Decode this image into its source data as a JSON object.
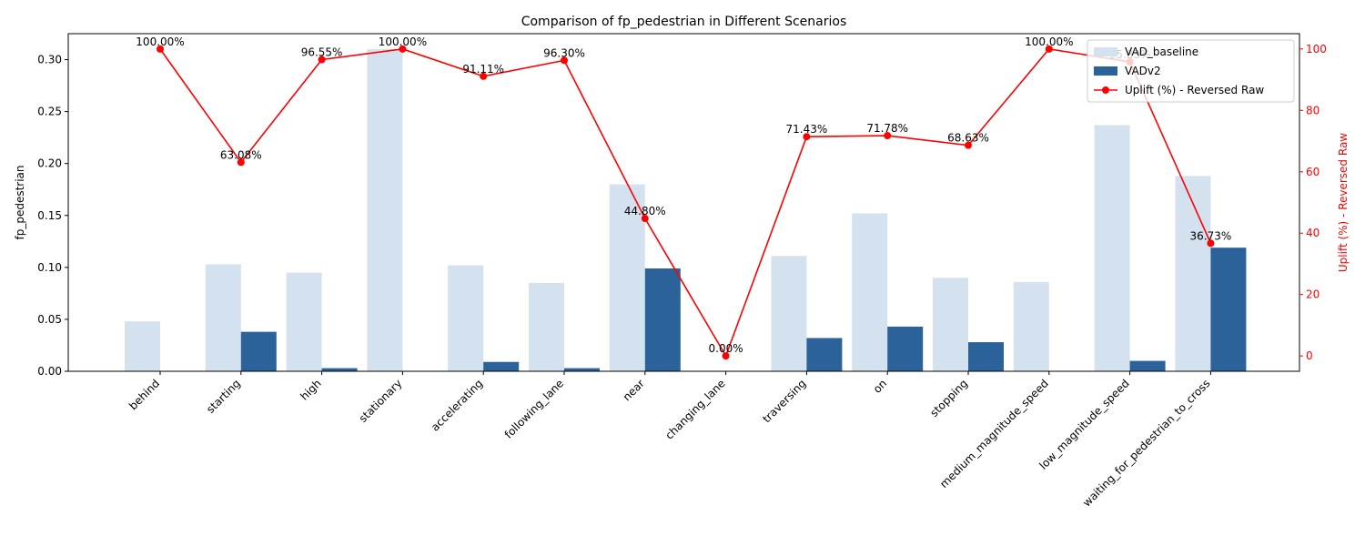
{
  "chart_data": {
    "type": "bar",
    "title": "Comparison of fp_pedestrian in Different Scenarios",
    "ylabel": "fp_pedestrian",
    "y2label": "Uplift (%) - Reversed Raw",
    "ylim": [
      0,
      0.325
    ],
    "y2lim": [
      -5,
      105
    ],
    "yticks": [
      "0.00",
      "0.05",
      "0.10",
      "0.15",
      "0.20",
      "0.25",
      "0.30"
    ],
    "y2ticks": [
      "0",
      "20",
      "40",
      "60",
      "80",
      "100"
    ],
    "categories": [
      "behind",
      "starting",
      "high",
      "stationary",
      "accelerating",
      "following_lane",
      "near",
      "changing_lane",
      "traversing",
      "on",
      "stopping",
      "medium_magnitude_speed",
      "low_magnitude_speed",
      "waiting_for_pedestrian_to_cross"
    ],
    "series": [
      {
        "name": "VAD_baseline",
        "color": "#d4e1ef",
        "values": [
          0.048,
          0.103,
          0.095,
          0.31,
          0.102,
          0.085,
          0.18,
          0.0,
          0.111,
          0.152,
          0.09,
          0.086,
          0.237,
          0.188
        ]
      },
      {
        "name": "VADv2",
        "color": "#2a6299",
        "values": [
          0.0,
          0.038,
          0.003,
          0.0,
          0.009,
          0.003,
          0.099,
          0.0,
          0.032,
          0.043,
          0.028,
          0.0,
          0.01,
          0.119
        ]
      }
    ],
    "line": {
      "name": "Uplift (%) - Reversed Raw",
      "color": "#ff0000",
      "values": [
        100.0,
        63.08,
        96.55,
        100.0,
        91.11,
        96.3,
        44.8,
        0.0,
        71.43,
        71.78,
        68.63,
        100.0,
        95.83,
        36.73
      ],
      "labels": [
        "100.00%",
        "63.08%",
        "96.55%",
        "100.00%",
        "91.11%",
        "96.30%",
        "44.80%",
        "0.00%",
        "71.43%",
        "71.78%",
        "68.63%",
        "100.00%",
        "95.83%",
        "36.73%"
      ]
    },
    "legend_position": "top-right",
    "grid": false
  }
}
